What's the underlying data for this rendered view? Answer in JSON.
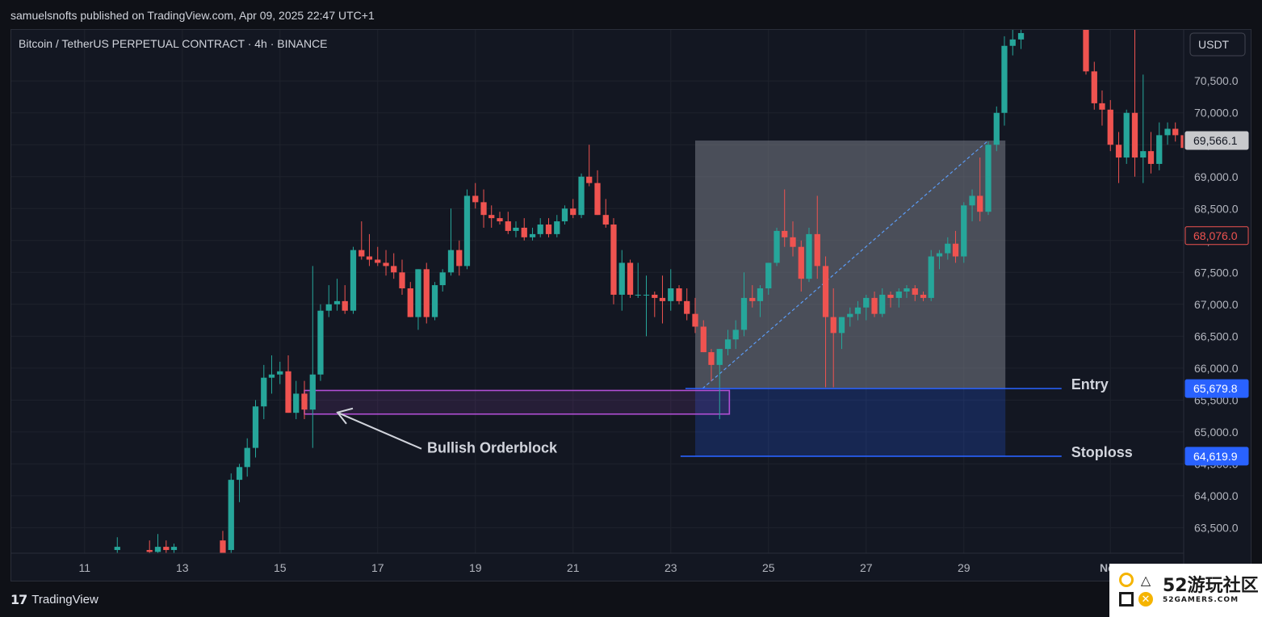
{
  "publish_line": "samuelsnofts published on TradingView.com, Apr 09, 2025 22:47 UTC+1",
  "footer": {
    "brand_mark": "17",
    "brand": "TradingView"
  },
  "watermark": {
    "title": "52游玩社区",
    "subtitle": "52GAMERS.COM"
  },
  "colors": {
    "background": "#131722",
    "up": "#26a69a",
    "down": "#ef5350",
    "grid": "#1e222d",
    "orderblock": "#b24fd6",
    "level_line": "#2962ff",
    "label_blue": "#2962ff",
    "label_red": "#ef5350"
  },
  "chart_data": {
    "type": "candlestick",
    "symbol_line": "Bitcoin / TetherUS PERPETUAL CONTRACT · 4h · BINANCE",
    "currency": "USDT",
    "ylim": [
      63100,
      71300
    ],
    "y_ticks": [
      63500,
      64000,
      64500,
      65000,
      65500,
      66000,
      66500,
      67000,
      67500,
      68000,
      68500,
      69000,
      69500,
      70000,
      70500
    ],
    "y_tick_labels": [
      "63,500.0",
      "64,000.0",
      "64,500.0",
      "65,000.0",
      "65,500.0",
      "66,000.0",
      "66,500.0",
      "67,000.0",
      "67,500.0",
      "68,000.0",
      "68,500.0",
      "69,000.0",
      "69,500.0",
      "70,000.0",
      "70,500.0"
    ],
    "x_ticks": [
      {
        "label": "11",
        "day": 11
      },
      {
        "label": "13",
        "day": 13
      },
      {
        "label": "15",
        "day": 15
      },
      {
        "label": "17",
        "day": 17
      },
      {
        "label": "19",
        "day": 19
      },
      {
        "label": "21",
        "day": 21
      },
      {
        "label": "23",
        "day": 23
      },
      {
        "label": "25",
        "day": 25
      },
      {
        "label": "27",
        "day": 27
      },
      {
        "label": "29",
        "day": 29
      },
      {
        "label": "Nov",
        "day": 32
      }
    ],
    "x_range_days": [
      9.5,
      33.5
    ],
    "candles_note": "each candle: [day_of_oct, open, high, low, close]",
    "candles": [
      [
        11.67,
        63150,
        63350,
        63050,
        63200
      ],
      [
        12.33,
        63150,
        63300,
        63050,
        63120
      ],
      [
        12.5,
        63120,
        63400,
        63050,
        63200
      ],
      [
        12.67,
        63200,
        63300,
        63050,
        63150
      ],
      [
        12.83,
        63150,
        63250,
        63050,
        63200
      ],
      [
        13.83,
        63300,
        63450,
        63050,
        63100
      ],
      [
        14.0,
        63150,
        64350,
        63100,
        64250
      ],
      [
        14.17,
        64250,
        64500,
        63900,
        64450
      ],
      [
        14.33,
        64450,
        64900,
        64300,
        64750
      ],
      [
        14.5,
        64750,
        65500,
        64600,
        65400
      ],
      [
        14.67,
        65400,
        66050,
        65200,
        65850
      ],
      [
        14.83,
        65850,
        66200,
        65600,
        65900
      ],
      [
        15.0,
        65900,
        66100,
        65750,
        65950
      ],
      [
        15.17,
        65950,
        66200,
        65300,
        65300
      ],
      [
        15.33,
        65300,
        65800,
        65200,
        65600
      ],
      [
        15.5,
        65600,
        65800,
        65200,
        65350
      ],
      [
        15.67,
        65350,
        67600,
        64750,
        65900
      ],
      [
        15.83,
        65900,
        67000,
        65800,
        66900
      ],
      [
        16.0,
        66900,
        67300,
        66800,
        67000
      ],
      [
        16.17,
        67000,
        67400,
        66900,
        67050
      ],
      [
        16.33,
        67050,
        67300,
        66850,
        66900
      ],
      [
        16.5,
        66900,
        67900,
        66850,
        67850
      ],
      [
        16.67,
        67850,
        68300,
        67700,
        67750
      ],
      [
        16.83,
        67750,
        68100,
        67600,
        67700
      ],
      [
        17.0,
        67700,
        67900,
        67600,
        67650
      ],
      [
        17.17,
        67650,
        67850,
        67450,
        67600
      ],
      [
        17.33,
        67600,
        67800,
        67400,
        67500
      ],
      [
        17.5,
        67500,
        67700,
        67150,
        67250
      ],
      [
        17.67,
        67250,
        67350,
        66800,
        66800
      ],
      [
        17.83,
        66800,
        67550,
        66600,
        67550
      ],
      [
        18.0,
        67550,
        67650,
        66700,
        66800
      ],
      [
        18.17,
        66800,
        67350,
        66750,
        67300
      ],
      [
        18.33,
        67300,
        67550,
        67200,
        67500
      ],
      [
        18.5,
        67500,
        68500,
        67450,
        67850
      ],
      [
        18.67,
        67850,
        68000,
        67450,
        67600
      ],
      [
        18.83,
        67600,
        68800,
        67550,
        68700
      ],
      [
        19.0,
        68700,
        68900,
        68500,
        68600
      ],
      [
        19.17,
        68600,
        68800,
        68200,
        68400
      ],
      [
        19.33,
        68400,
        68550,
        68200,
        68350
      ],
      [
        19.5,
        68350,
        68450,
        68250,
        68300
      ],
      [
        19.67,
        68300,
        68450,
        68100,
        68150
      ],
      [
        19.83,
        68150,
        68300,
        68050,
        68200
      ],
      [
        20.0,
        68200,
        68350,
        68000,
        68050
      ],
      [
        20.17,
        68050,
        68200,
        68000,
        68100
      ],
      [
        20.33,
        68100,
        68350,
        68050,
        68250
      ],
      [
        20.5,
        68250,
        68350,
        68050,
        68100
      ],
      [
        20.67,
        68100,
        68400,
        68050,
        68300
      ],
      [
        20.83,
        68300,
        68550,
        68250,
        68500
      ],
      [
        21.0,
        68500,
        68650,
        68350,
        68400
      ],
      [
        21.17,
        68400,
        69050,
        68350,
        69000
      ],
      [
        21.33,
        69000,
        69500,
        68850,
        68900
      ],
      [
        21.5,
        68900,
        69100,
        68400,
        68400
      ],
      [
        21.67,
        68400,
        68650,
        68200,
        68250
      ],
      [
        21.83,
        68250,
        68350,
        67000,
        67150
      ],
      [
        22.0,
        67150,
        67850,
        66900,
        67650
      ],
      [
        22.17,
        67650,
        67700,
        67100,
        67150
      ],
      [
        22.33,
        67150,
        67650,
        67100,
        67150
      ],
      [
        22.5,
        67150,
        67450,
        66500,
        67150
      ],
      [
        22.67,
        67150,
        67200,
        66800,
        67100
      ],
      [
        22.83,
        67100,
        67450,
        66700,
        67050
      ],
      [
        23.0,
        67050,
        67550,
        66900,
        67250
      ],
      [
        23.17,
        67250,
        67300,
        67000,
        67050
      ],
      [
        23.33,
        67050,
        67250,
        66750,
        66850
      ],
      [
        23.5,
        66850,
        67100,
        66550,
        66650
      ],
      [
        23.67,
        66650,
        66750,
        66250,
        66250
      ],
      [
        23.83,
        66250,
        66300,
        65800,
        66050
      ],
      [
        24.0,
        66050,
        66300,
        65200,
        66300
      ],
      [
        24.17,
        66300,
        66600,
        66200,
        66450
      ],
      [
        24.33,
        66450,
        66750,
        66300,
        66600
      ],
      [
        24.5,
        66600,
        67500,
        66500,
        67100
      ],
      [
        24.67,
        67100,
        67300,
        66950,
        67050
      ],
      [
        24.83,
        67050,
        67300,
        66800,
        67250
      ],
      [
        25.0,
        67250,
        67650,
        67150,
        67650
      ],
      [
        25.17,
        67650,
        68200,
        67600,
        68150
      ],
      [
        25.33,
        68150,
        68800,
        67900,
        68050
      ],
      [
        25.5,
        68050,
        68300,
        67750,
        67900
      ],
      [
        25.67,
        67900,
        68000,
        67200,
        67400
      ],
      [
        25.83,
        67400,
        68200,
        67350,
        68100
      ],
      [
        26.0,
        68100,
        68700,
        67400,
        67600
      ],
      [
        26.17,
        67600,
        67750,
        65700,
        66800
      ],
      [
        26.33,
        66800,
        67250,
        65700,
        66550
      ],
      [
        26.5,
        66550,
        66800,
        66300,
        66800
      ],
      [
        26.67,
        66800,
        66950,
        66650,
        66850
      ],
      [
        26.83,
        66850,
        67050,
        66750,
        66950
      ],
      [
        27.0,
        66950,
        67150,
        66750,
        67100
      ],
      [
        27.17,
        67100,
        67200,
        66800,
        66850
      ],
      [
        27.33,
        66850,
        67250,
        66800,
        67150
      ],
      [
        27.5,
        67150,
        67200,
        66950,
        67100
      ],
      [
        27.67,
        67100,
        67250,
        66950,
        67200
      ],
      [
        27.83,
        67200,
        67300,
        67100,
        67250
      ],
      [
        28.0,
        67250,
        67300,
        67050,
        67150
      ],
      [
        28.17,
        67150,
        67200,
        67050,
        67100
      ],
      [
        28.33,
        67100,
        67850,
        67050,
        67750
      ],
      [
        28.5,
        67750,
        67850,
        67550,
        67800
      ],
      [
        28.67,
        67800,
        68050,
        67700,
        67950
      ],
      [
        28.83,
        67950,
        68150,
        67650,
        67750
      ],
      [
        29.0,
        67750,
        68600,
        67650,
        68550
      ],
      [
        29.17,
        68550,
        68800,
        68300,
        68700
      ],
      [
        29.33,
        68700,
        69300,
        68300,
        68450
      ],
      [
        29.5,
        68450,
        69550,
        68400,
        69500
      ],
      [
        29.67,
        69500,
        70100,
        69400,
        70000
      ],
      [
        29.83,
        70000,
        71200,
        69800,
        71050
      ],
      [
        30.0,
        71050,
        71300,
        70900,
        71150
      ],
      [
        30.17,
        71150,
        71350,
        71000,
        71250
      ],
      [
        31.5,
        71300,
        71400,
        70600,
        70650
      ],
      [
        31.67,
        70650,
        70800,
        70050,
        70150
      ],
      [
        31.83,
        70150,
        70350,
        69800,
        70050
      ],
      [
        32.0,
        70050,
        70200,
        69400,
        69500
      ],
      [
        32.17,
        69500,
        69700,
        68900,
        69300
      ],
      [
        32.33,
        69300,
        70050,
        69200,
        70000
      ],
      [
        32.5,
        70000,
        71300,
        69000,
        69300
      ],
      [
        32.67,
        69300,
        70600,
        68900,
        69400
      ],
      [
        32.83,
        69400,
        69700,
        69050,
        69200
      ],
      [
        33.0,
        69200,
        69850,
        69100,
        69650
      ],
      [
        33.17,
        69650,
        69850,
        69500,
        69750
      ],
      [
        33.33,
        69750,
        69850,
        69550,
        69650
      ],
      [
        33.5,
        69650,
        69800,
        69350,
        69450
      ],
      [
        33.67,
        69450,
        69650,
        69150,
        69350
      ],
      [
        33.83,
        69350,
        69600,
        69200,
        69500
      ],
      [
        34.0,
        69500,
        69550,
        69200,
        69350
      ],
      [
        34.17,
        69350,
        69500,
        67900,
        68400
      ],
      [
        34.33,
        68400,
        68700,
        68300,
        68450
      ],
      [
        34.5,
        68450,
        68600,
        68250,
        68400
      ],
      [
        34.67,
        68400,
        68550,
        68050,
        68100
      ],
      [
        34.83,
        68100,
        68200,
        67400,
        67900
      ]
    ],
    "price_labels": [
      {
        "price": 69566.1,
        "text": "69,566.1",
        "style": "gray"
      },
      {
        "price": 68076.0,
        "text": "68,076.0",
        "style": "red"
      },
      {
        "price": 65679.8,
        "text": "65,679.8",
        "style": "blue"
      },
      {
        "price": 64619.9,
        "text": "64,619.9",
        "style": "blue"
      }
    ],
    "position": {
      "start_day": 23.5,
      "end_day": 29.85,
      "entry": 65679.8,
      "target": 69566.1,
      "stop": 64619.9
    },
    "orderblock": {
      "start_day": 15.5,
      "end_day": 24.2,
      "top": 65650,
      "bottom": 65280,
      "label": "Bullish Orderblock"
    },
    "levels": [
      {
        "name": "Entry",
        "price": 65679.8,
        "start_day": 23.3,
        "end_day": 31.0
      },
      {
        "name": "Stoploss",
        "price": 64619.9,
        "start_day": 23.2,
        "end_day": 31.0
      }
    ]
  }
}
